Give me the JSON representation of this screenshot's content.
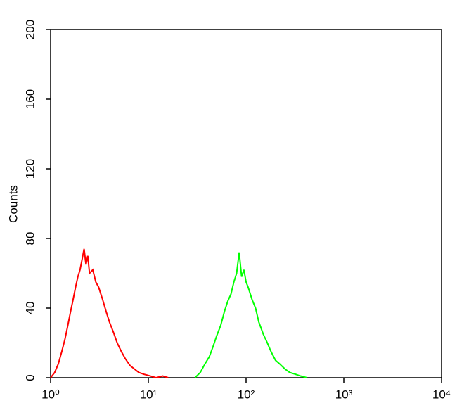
{
  "chart_data": {
    "type": "line",
    "y_label": "Counts",
    "x_log": true,
    "xlim": [
      1,
      10000
    ],
    "xticks": [
      {
        "value": 1,
        "label": "10⁰"
      },
      {
        "value": 10,
        "label": "10¹"
      },
      {
        "value": 100,
        "label": "10²"
      },
      {
        "value": 1000,
        "label": "10³"
      },
      {
        "value": 10000,
        "label": "10⁴"
      }
    ],
    "ylim": [
      0,
      200
    ],
    "yticks": [
      0,
      40,
      80,
      120,
      160,
      200
    ],
    "series": [
      {
        "color": "#ff0000",
        "x": [
          1.0,
          1.1,
          1.2,
          1.3,
          1.4,
          1.5,
          1.6,
          1.7,
          1.8,
          1.9,
          2.0,
          2.1,
          2.2,
          2.3,
          2.4,
          2.5,
          2.7,
          2.9,
          3.1,
          3.4,
          3.7,
          4.0,
          4.4,
          4.8,
          5.3,
          5.8,
          6.5,
          7.2,
          8.0,
          9.0,
          10.5,
          12,
          14,
          16
        ],
        "values": [
          0,
          3,
          8,
          15,
          22,
          30,
          38,
          45,
          52,
          58,
          62,
          68,
          74,
          65,
          70,
          60,
          62,
          55,
          52,
          45,
          38,
          32,
          26,
          20,
          15,
          11,
          7,
          5,
          3,
          2,
          1,
          0,
          1,
          0
        ]
      },
      {
        "color": "#00ff00",
        "x": [
          30,
          34,
          38,
          42,
          46,
          50,
          55,
          60,
          65,
          70,
          75,
          80,
          85,
          90,
          95,
          100,
          105,
          115,
          125,
          135,
          150,
          165,
          180,
          200,
          220,
          250,
          280,
          320,
          360,
          420
        ],
        "values": [
          0,
          3,
          8,
          12,
          18,
          24,
          30,
          38,
          44,
          48,
          55,
          60,
          72,
          58,
          62,
          55,
          52,
          45,
          40,
          32,
          25,
          20,
          15,
          10,
          8,
          5,
          3,
          2,
          1,
          0
        ]
      }
    ]
  }
}
